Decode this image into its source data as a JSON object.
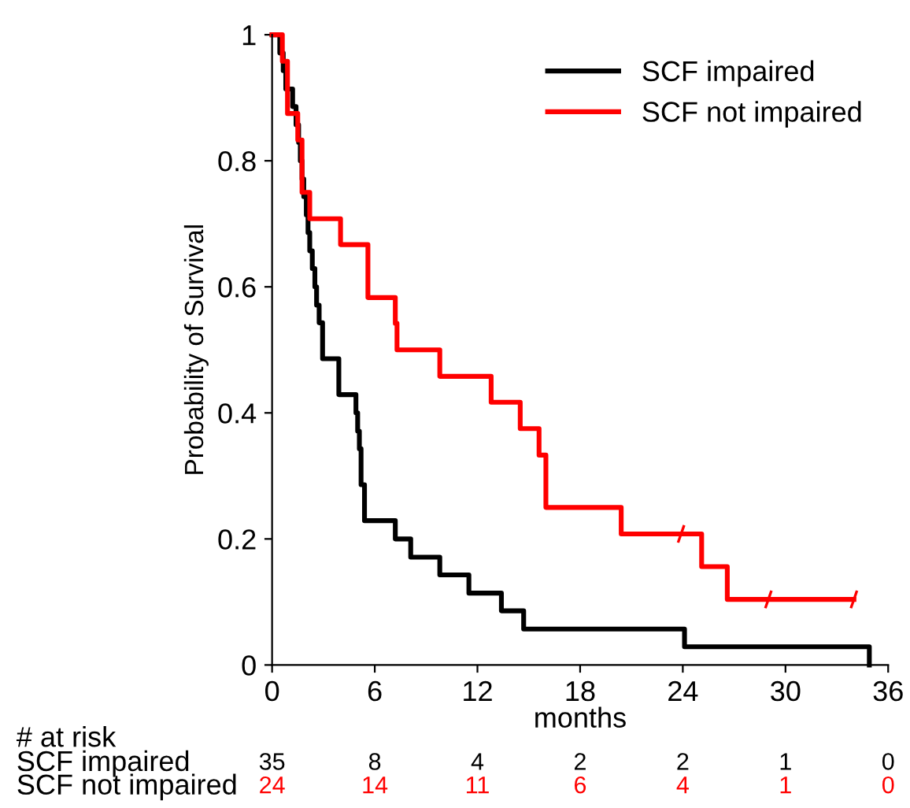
{
  "chart_data": {
    "type": "step",
    "xlabel": "months",
    "ylabel": "Probability of Survival",
    "xlim": [
      0,
      36
    ],
    "ylim": [
      0,
      1
    ],
    "xticks": [
      0,
      6,
      12,
      18,
      24,
      30,
      36
    ],
    "yticks": [
      0,
      0.2,
      0.4,
      0.6,
      0.8,
      1
    ],
    "grid": false,
    "legend": "top right",
    "marker": "none",
    "line_style": "solid",
    "series": [
      {
        "name": "SCF impaired",
        "color": "#000000",
        "x": [
          0,
          0.45,
          0.65,
          0.8,
          1.2,
          1.4,
          1.55,
          1.65,
          1.75,
          1.85,
          2.0,
          2.1,
          2.2,
          2.35,
          2.5,
          2.6,
          2.75,
          2.95,
          3.9,
          4.9,
          5.0,
          5.1,
          5.2,
          5.4,
          7.2,
          8.1,
          9.8,
          11.5,
          13.4,
          14.7,
          24.1,
          34.9
        ],
        "values": [
          1,
          0.971,
          0.943,
          0.914,
          0.886,
          0.857,
          0.829,
          0.8,
          0.771,
          0.743,
          0.714,
          0.686,
          0.657,
          0.629,
          0.6,
          0.571,
          0.543,
          0.486,
          0.429,
          0.4,
          0.371,
          0.343,
          0.286,
          0.229,
          0.2,
          0.171,
          0.143,
          0.114,
          0.086,
          0.057,
          0.029,
          0
        ]
      },
      {
        "name": "SCF not impaired",
        "color": "#ff0000",
        "x": [
          0,
          0.6,
          0.9,
          1.5,
          1.75,
          2.2,
          4.0,
          5.6,
          7.2,
          7.3,
          9.8,
          12.8,
          14.5,
          15.6,
          16.0,
          20.4,
          25.1,
          26.6,
          34.0
        ],
        "values": [
          1,
          0.958,
          0.875,
          0.833,
          0.75,
          0.708,
          0.667,
          0.583,
          0.542,
          0.5,
          0.458,
          0.417,
          0.375,
          0.333,
          0.25,
          0.208,
          0.156,
          0.104,
          0.104
        ]
      },
      {
        "type": "scatter",
        "color": "#ff0000",
        "marker": "cross",
        "x": [
          23.9,
          29.0,
          34.0
        ],
        "values": [
          0.208,
          0.104,
          0.104
        ]
      }
    ],
    "annotations": [
      "# at risk",
      "SCF impaired",
      "35",
      "8",
      "4",
      "2",
      "2",
      "1",
      "0",
      "SCF not impaired",
      "24",
      "14",
      "11",
      "6",
      "4",
      "1",
      "0"
    ]
  }
}
